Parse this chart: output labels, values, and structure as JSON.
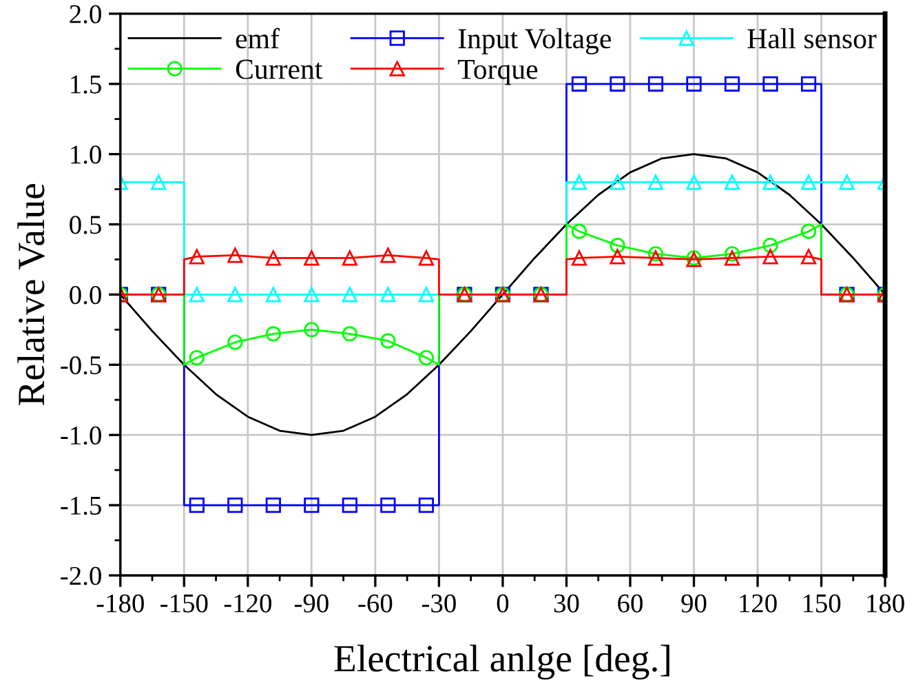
{
  "chart_data": {
    "type": "line",
    "xlabel": "Electrical anlge [deg.]",
    "ylabel": "Relative Value",
    "xlim": [
      -180,
      180
    ],
    "xticks": [
      -180,
      -150,
      -120,
      -90,
      -60,
      -30,
      0,
      30,
      60,
      90,
      120,
      150,
      180
    ],
    "ylim": [
      -2.0,
      2.0
    ],
    "yticks": [
      {
        "value": -2,
        "label": "-2.0"
      },
      {
        "value": -1.5,
        "label": "-1.5"
      },
      {
        "value": -1,
        "label": "-1.0"
      },
      {
        "value": -0.5,
        "label": "-0.5"
      },
      {
        "value": 0,
        "label": "0.0"
      },
      {
        "value": 0.5,
        "label": "0.5"
      },
      {
        "value": 1,
        "label": "1.0"
      },
      {
        "value": 1.5,
        "label": "1.5"
      },
      {
        "value": 2,
        "label": "2.0"
      }
    ],
    "grid": true,
    "legend": "top",
    "series": [
      {
        "name": "emf",
        "color": "#000000",
        "marker": "none",
        "x": [
          -180,
          -165,
          -150,
          -135,
          -120,
          -105,
          -90,
          -75,
          -60,
          -45,
          -30,
          -15,
          0,
          15,
          30,
          45,
          60,
          75,
          90,
          105,
          120,
          135,
          150,
          165,
          180
        ],
        "values": [
          0,
          -0.26,
          -0.5,
          -0.71,
          -0.87,
          -0.97,
          -1.0,
          -0.97,
          -0.87,
          -0.71,
          -0.5,
          -0.26,
          0,
          0.26,
          0.5,
          0.71,
          0.87,
          0.97,
          1.0,
          0.97,
          0.87,
          0.71,
          0.5,
          0.26,
          0
        ]
      },
      {
        "name": "Input Voltage",
        "color": "#0000ff",
        "marker": "square",
        "x": [
          -180,
          -162,
          -150,
          -150,
          -144,
          -126,
          -108,
          -90,
          -72,
          -54,
          -36,
          -30,
          -30,
          -18,
          0,
          18,
          30,
          30,
          36,
          54,
          72,
          90,
          108,
          126,
          144,
          150,
          150,
          162,
          180
        ],
        "values": [
          0,
          0,
          0,
          -1.5,
          -1.5,
          -1.5,
          -1.5,
          -1.5,
          -1.5,
          -1.5,
          -1.5,
          -1.5,
          0,
          0,
          0,
          0,
          0,
          1.5,
          1.5,
          1.5,
          1.5,
          1.5,
          1.5,
          1.5,
          1.5,
          1.5,
          0,
          0,
          0
        ]
      },
      {
        "name": "Hall sensor",
        "color": "#00ffff",
        "marker": "triangle",
        "x": [
          -180,
          -162,
          -150,
          -150,
          -144,
          -126,
          -108,
          -90,
          -72,
          -54,
          -36,
          -18,
          0,
          18,
          30,
          30,
          36,
          54,
          72,
          90,
          108,
          126,
          144,
          162,
          180
        ],
        "values": [
          0.8,
          0.8,
          0.8,
          0,
          0,
          0,
          0,
          0,
          0,
          0,
          0,
          0,
          0,
          0,
          0,
          0.8,
          0.8,
          0.8,
          0.8,
          0.8,
          0.8,
          0.8,
          0.8,
          0.8,
          0.8
        ]
      },
      {
        "name": "Current",
        "color": "#00ff00",
        "marker": "circle",
        "x": [
          -180,
          -162,
          -150,
          -150,
          -144,
          -126,
          -108,
          -90,
          -72,
          -54,
          -36,
          -30,
          -30,
          -18,
          0,
          18,
          30,
          30,
          36,
          54,
          72,
          90,
          108,
          126,
          144,
          150,
          150,
          162,
          180
        ],
        "values": [
          0,
          0,
          0,
          -0.5,
          -0.45,
          -0.34,
          -0.28,
          -0.25,
          -0.28,
          -0.33,
          -0.45,
          -0.5,
          0,
          0,
          0,
          0,
          0,
          0.5,
          0.45,
          0.35,
          0.29,
          0.26,
          0.29,
          0.35,
          0.45,
          0.5,
          0,
          0,
          0
        ]
      },
      {
        "name": "Torque",
        "color": "#ff0000",
        "marker": "triangle",
        "x": [
          -180,
          -162,
          -150,
          -150,
          -144,
          -126,
          -108,
          -90,
          -72,
          -54,
          -36,
          -30,
          -30,
          -18,
          0,
          18,
          30,
          30,
          36,
          54,
          72,
          90,
          108,
          126,
          144,
          150,
          150,
          162,
          180
        ],
        "values": [
          0,
          0,
          0,
          0.25,
          0.27,
          0.28,
          0.26,
          0.26,
          0.26,
          0.28,
          0.26,
          0.25,
          0,
          0,
          0,
          0,
          0,
          0.25,
          0.26,
          0.27,
          0.26,
          0.25,
          0.26,
          0.27,
          0.27,
          0.25,
          0,
          0,
          0
        ]
      }
    ]
  }
}
